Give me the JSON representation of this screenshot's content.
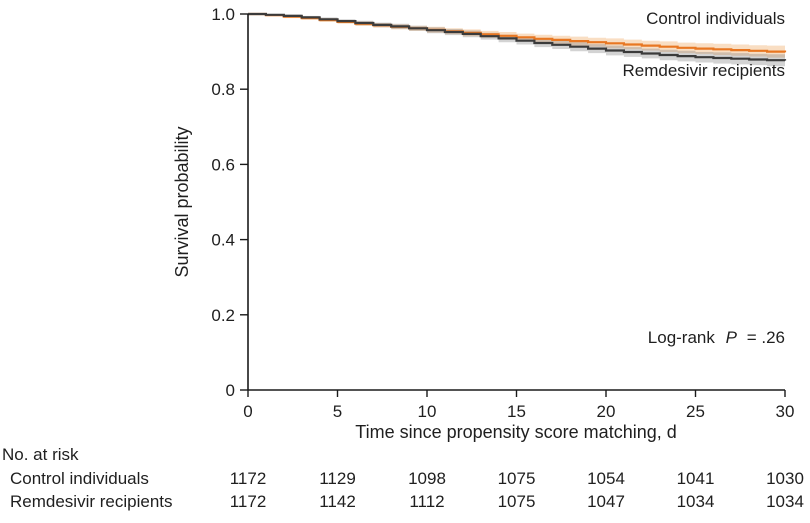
{
  "chart_data": {
    "type": "line",
    "subtype": "kaplan-meier-step-with-ci-bands",
    "title": "",
    "xlabel": "Time since propensity score matching, d",
    "ylabel": "Survival probability",
    "xlim": [
      0,
      30
    ],
    "ylim": [
      0,
      1.0
    ],
    "x_ticks": [
      0,
      5,
      10,
      15,
      20,
      25,
      30
    ],
    "x_tick_labels": [
      "0",
      "5",
      "10",
      "15",
      "20",
      "25",
      "30"
    ],
    "y_ticks": [
      1.0,
      0.8,
      0.6,
      0.4,
      0.2,
      0
    ],
    "y_tick_labels": [
      "1.0",
      "0.8",
      "0.6",
      "0.4",
      "0.2",
      "0"
    ],
    "grid": false,
    "legend_position": "inline-right",
    "x": [
      0,
      1,
      2,
      3,
      4,
      5,
      6,
      7,
      8,
      9,
      10,
      11,
      12,
      13,
      14,
      15,
      16,
      17,
      18,
      19,
      20,
      21,
      22,
      23,
      24,
      25,
      26,
      27,
      28,
      29,
      30
    ],
    "series": [
      {
        "name": "Control individuals",
        "color": "#e87722",
        "band_color": "rgba(236,147,56,0.30)",
        "values": [
          1.0,
          0.997,
          0.993,
          0.989,
          0.984,
          0.979,
          0.974,
          0.97,
          0.966,
          0.962,
          0.958,
          0.954,
          0.95,
          0.946,
          0.942,
          0.938,
          0.934,
          0.931,
          0.928,
          0.925,
          0.922,
          0.919,
          0.916,
          0.913,
          0.91,
          0.908,
          0.906,
          0.904,
          0.902,
          0.9,
          0.898
        ]
      },
      {
        "name": "Remdesivir recipients",
        "color": "#3b3b3b",
        "band_color": "rgba(130,130,130,0.35)",
        "values": [
          1.0,
          0.998,
          0.995,
          0.991,
          0.986,
          0.981,
          0.976,
          0.971,
          0.967,
          0.962,
          0.957,
          0.952,
          0.947,
          0.941,
          0.935,
          0.929,
          0.923,
          0.918,
          0.913,
          0.908,
          0.903,
          0.899,
          0.895,
          0.891,
          0.888,
          0.885,
          0.883,
          0.881,
          0.879,
          0.877,
          0.876
        ]
      }
    ],
    "ci_halfwidth": [
      0.003,
      0.003,
      0.004,
      0.004,
      0.005,
      0.005,
      0.006,
      0.006,
      0.007,
      0.007,
      0.008,
      0.008,
      0.009,
      0.009,
      0.01,
      0.01,
      0.011,
      0.011,
      0.012,
      0.012,
      0.013,
      0.013,
      0.013,
      0.014,
      0.014,
      0.014,
      0.015,
      0.015,
      0.015,
      0.016,
      0.016
    ],
    "annotation": {
      "prefix": "Log-rank",
      "p_symbol": "P",
      "suffix": "= .26"
    }
  },
  "risk_table": {
    "header": "No. at risk",
    "rows": [
      {
        "label": "Control individuals",
        "values": [
          "1172",
          "1129",
          "1098",
          "1075",
          "1054",
          "1041",
          "1030"
        ]
      },
      {
        "label": "Remdesivir recipients",
        "values": [
          "1172",
          "1142",
          "1112",
          "1075",
          "1047",
          "1034",
          "1034"
        ]
      }
    ]
  }
}
